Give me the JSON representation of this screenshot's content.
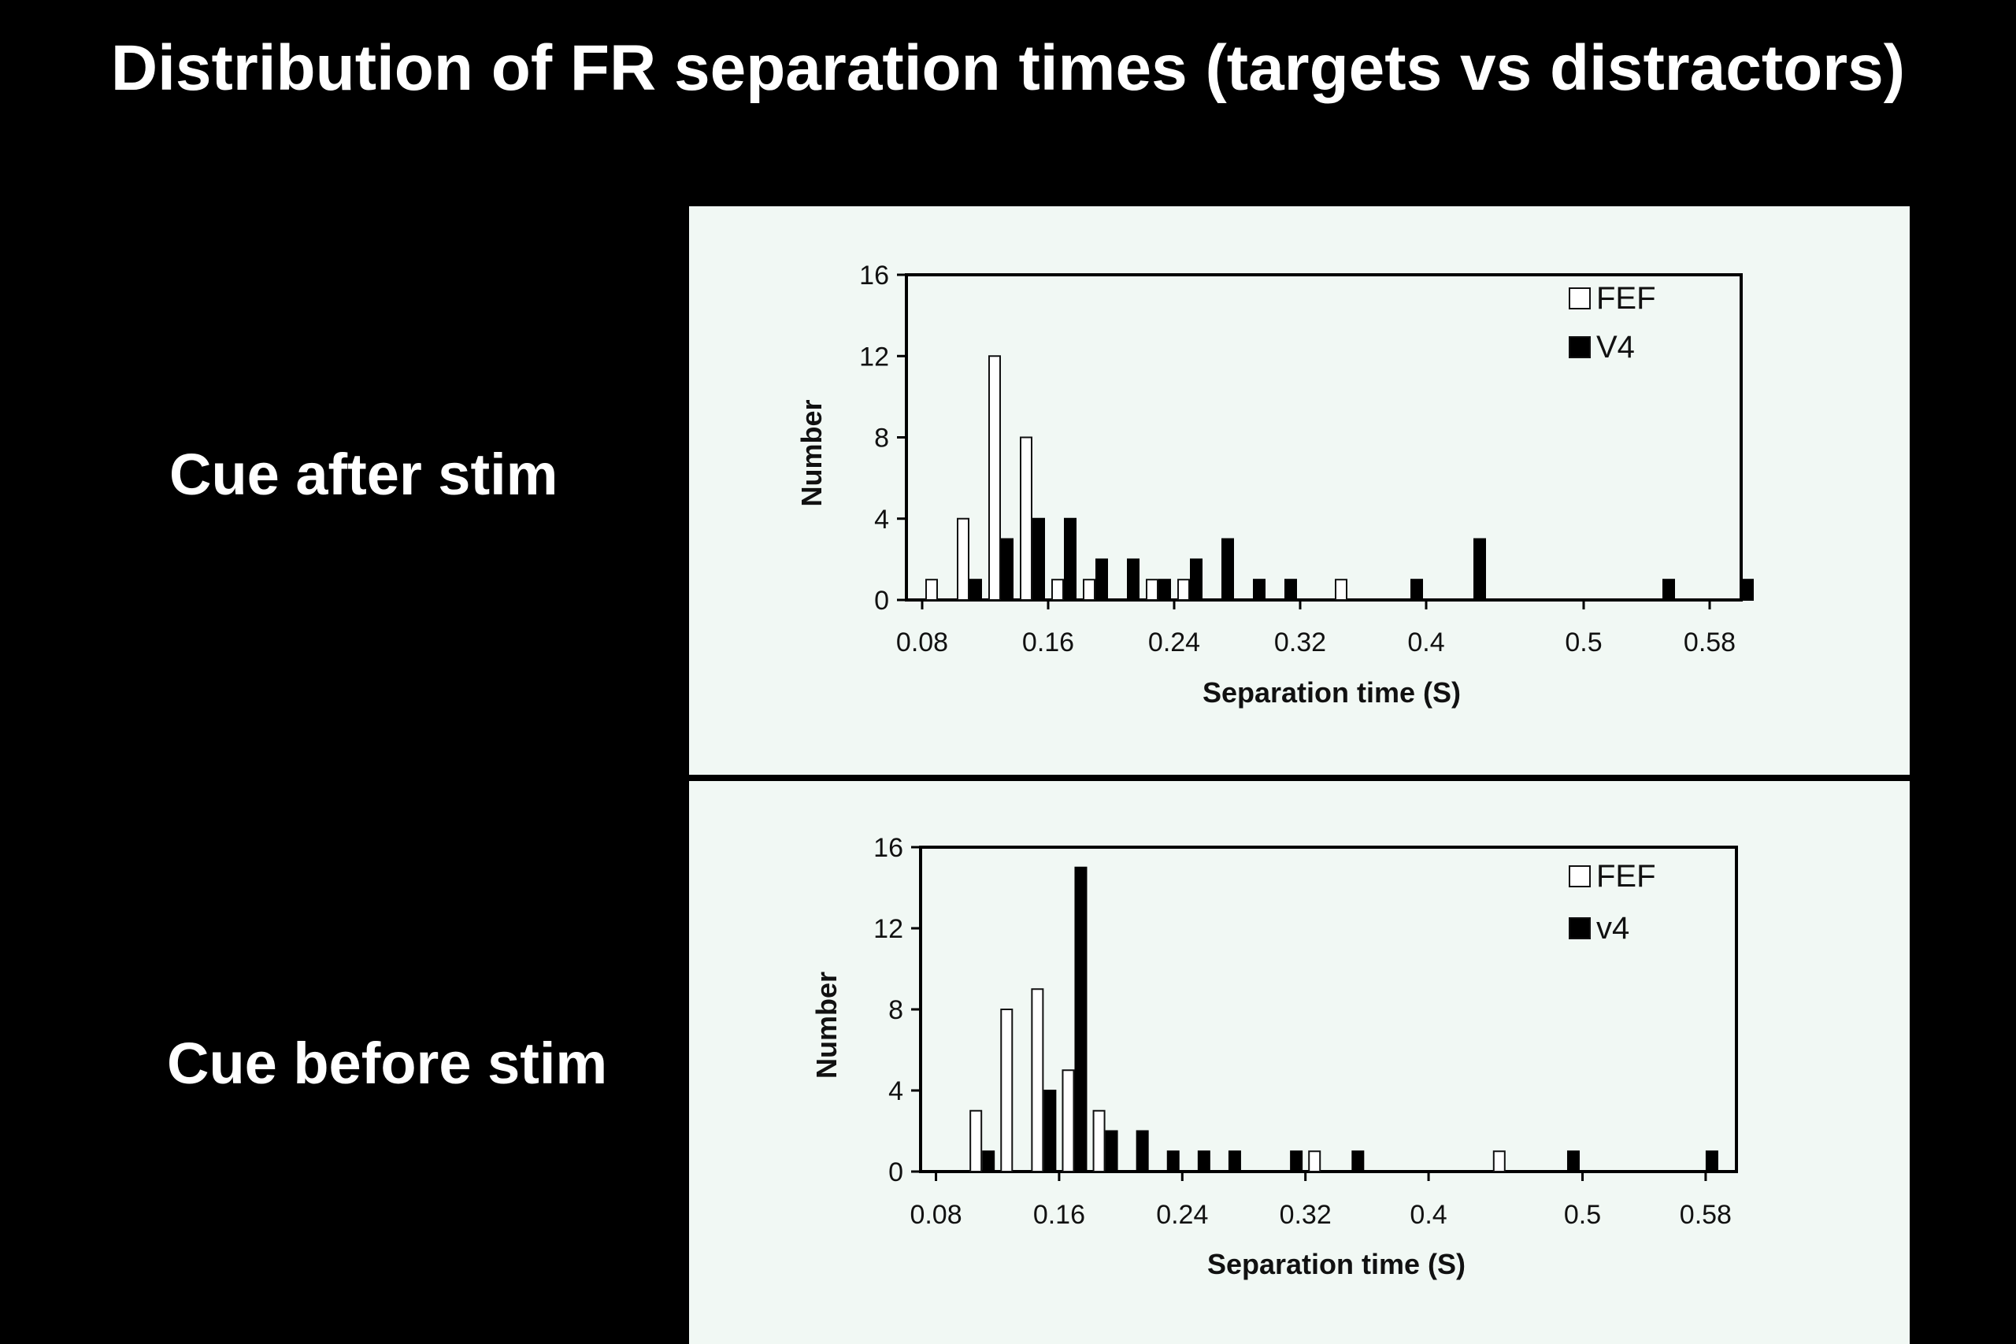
{
  "title": "Distribution of FR separation times (targets vs distractors)",
  "row_labels": [
    "Cue after stim",
    "Cue before stim"
  ],
  "colors": {
    "background": "#000000",
    "panel": "#f1f8f4",
    "fef": "#ffffff",
    "v4": "#000000"
  },
  "chart_data": [
    {
      "type": "bar",
      "panel": "Cue after stim",
      "xlabel": "Separation time (S)",
      "ylabel": "Number",
      "ylim": [
        0,
        16
      ],
      "yticks": [
        0,
        4,
        8,
        12,
        16
      ],
      "xticks": [
        "0.08",
        "0.16",
        "0.24",
        "0.32",
        "0.4",
        "0.5",
        "0.58"
      ],
      "xlim": [
        0.07,
        0.6
      ],
      "legend_position": "top-right",
      "grid": false,
      "series": [
        {
          "name": "FEF",
          "points": [
            [
              0.09,
              1
            ],
            [
              0.11,
              4
            ],
            [
              0.13,
              12
            ],
            [
              0.15,
              8
            ],
            [
              0.17,
              1
            ],
            [
              0.19,
              1
            ],
            [
              0.23,
              1
            ],
            [
              0.25,
              1
            ],
            [
              0.35,
              1
            ]
          ]
        },
        {
          "name": "V4",
          "points": [
            [
              0.11,
              1
            ],
            [
              0.13,
              3
            ],
            [
              0.15,
              4
            ],
            [
              0.17,
              4
            ],
            [
              0.19,
              2
            ],
            [
              0.21,
              2
            ],
            [
              0.23,
              1
            ],
            [
              0.25,
              2
            ],
            [
              0.27,
              3
            ],
            [
              0.29,
              1
            ],
            [
              0.31,
              1
            ],
            [
              0.39,
              1
            ],
            [
              0.43,
              3
            ],
            [
              0.55,
              1
            ],
            [
              0.6,
              1
            ]
          ]
        }
      ]
    },
    {
      "type": "bar",
      "panel": "Cue before stim",
      "xlabel": "Separation time (S)",
      "ylabel": "Number",
      "ylim": [
        0,
        16
      ],
      "yticks": [
        0,
        4,
        8,
        12,
        16
      ],
      "xticks": [
        "0.08",
        "0.16",
        "0.24",
        "0.32",
        "0.4",
        "0.5",
        "0.58"
      ],
      "xlim": [
        0.07,
        0.6
      ],
      "legend_position": "top-right",
      "grid": false,
      "series": [
        {
          "name": "FEF",
          "points": [
            [
              0.11,
              3
            ],
            [
              0.13,
              8
            ],
            [
              0.15,
              9
            ],
            [
              0.17,
              5
            ],
            [
              0.19,
              3
            ],
            [
              0.33,
              1
            ],
            [
              0.45,
              1
            ]
          ]
        },
        {
          "name": "v4",
          "points": [
            [
              0.11,
              1
            ],
            [
              0.15,
              4
            ],
            [
              0.17,
              15
            ],
            [
              0.19,
              2
            ],
            [
              0.21,
              2
            ],
            [
              0.23,
              1
            ],
            [
              0.25,
              1
            ],
            [
              0.27,
              1
            ],
            [
              0.31,
              1
            ],
            [
              0.35,
              1
            ],
            [
              0.49,
              1
            ],
            [
              0.58,
              1
            ]
          ]
        }
      ]
    }
  ]
}
